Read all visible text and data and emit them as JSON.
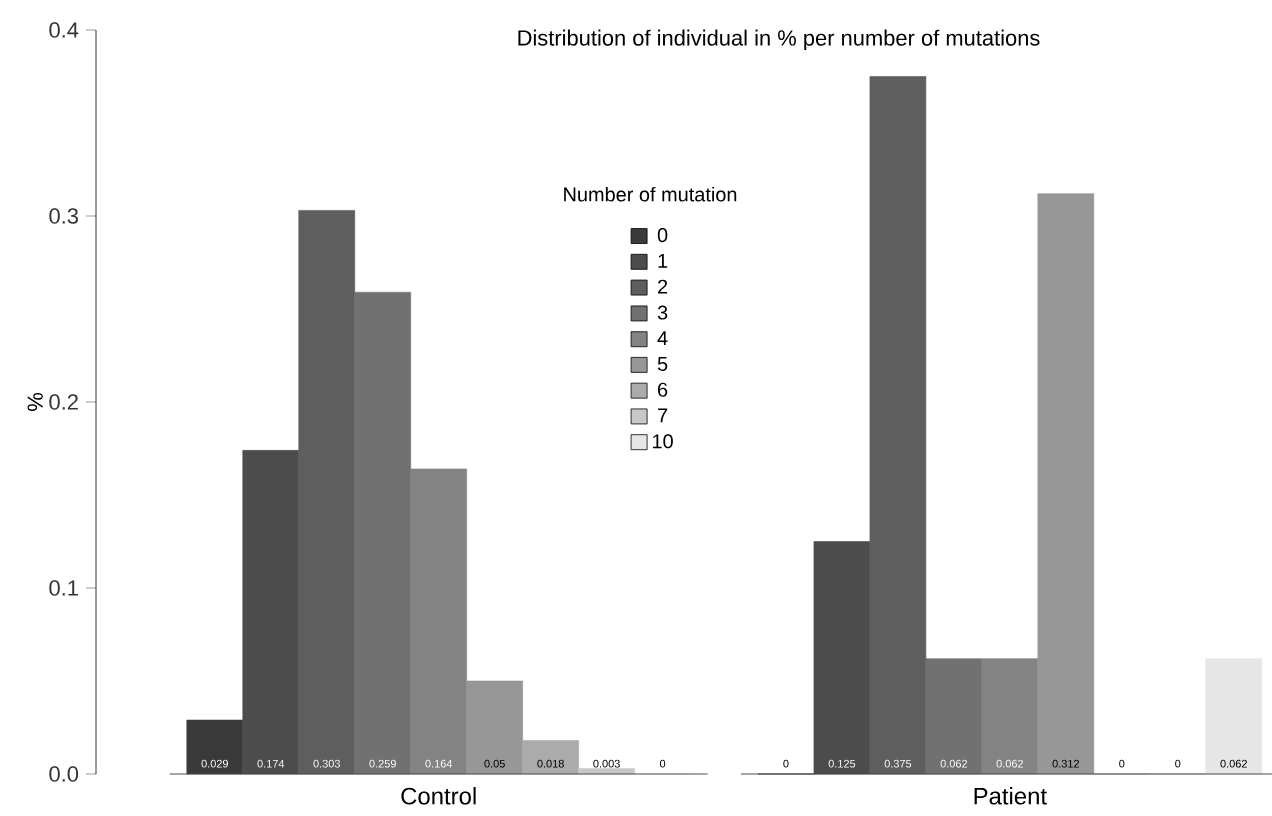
{
  "chart_data": {
    "type": "bar",
    "title": "Distribution of individual in % per number of mutations",
    "ylabel": "%",
    "legend_title": "Number of mutation",
    "legend": "top",
    "categories": [
      "Control",
      "Patient"
    ],
    "series": [
      {
        "name": "0",
        "color": "#3a3a3a",
        "values": [
          0.029,
          0
        ]
      },
      {
        "name": "1",
        "color": "#4c4c4c",
        "values": [
          0.174,
          0.125
        ]
      },
      {
        "name": "2",
        "color": "#5e5e5e",
        "values": [
          0.303,
          0.375
        ]
      },
      {
        "name": "3",
        "color": "#717171",
        "values": [
          0.259,
          0.062
        ]
      },
      {
        "name": "4",
        "color": "#838383",
        "values": [
          0.164,
          0.062
        ]
      },
      {
        "name": "5",
        "color": "#979797",
        "values": [
          0.05,
          0.312
        ]
      },
      {
        "name": "6",
        "color": "#ababab",
        "values": [
          0.018,
          0
        ]
      },
      {
        "name": "7",
        "color": "#c8c8c8",
        "values": [
          0.003,
          0
        ]
      },
      {
        "name": "10",
        "color": "#e6e6e6",
        "values": [
          0,
          0.062
        ]
      }
    ],
    "data_labels": true,
    "ylim": [
      0,
      0.4
    ],
    "yticks": [
      {
        "value": 0,
        "label": "0.0"
      },
      0.1,
      0.2,
      0.3,
      0.4
    ],
    "grid": false
  }
}
